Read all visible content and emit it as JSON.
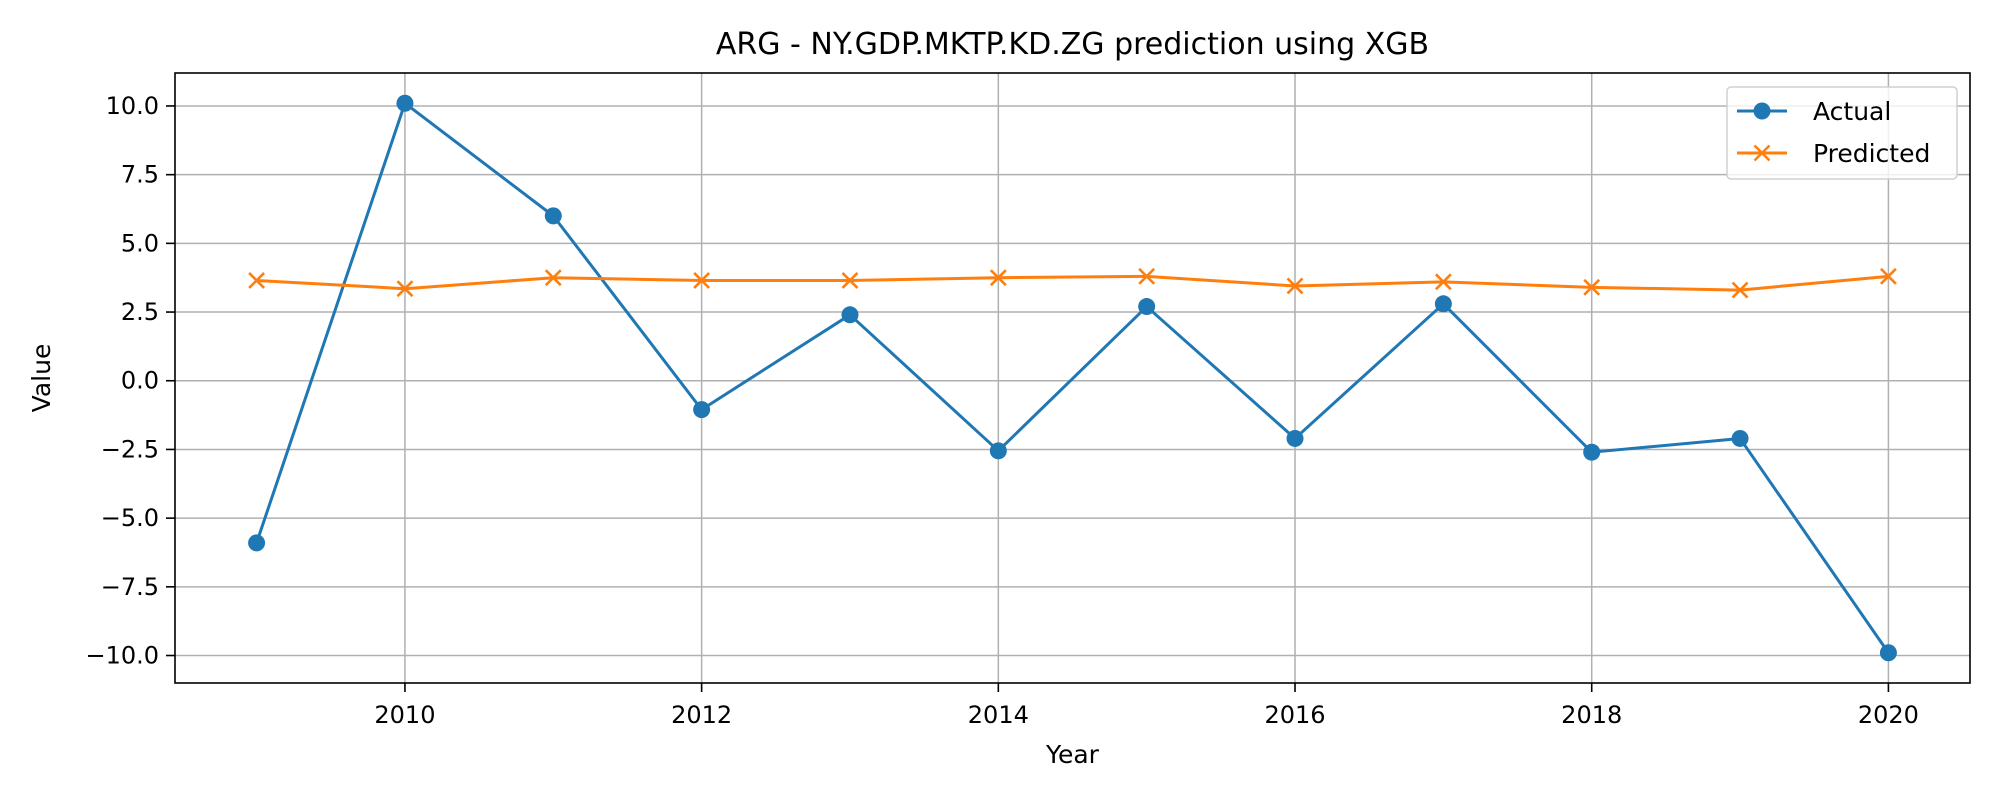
{
  "chart_data": {
    "type": "line",
    "title": "ARG - NY.GDP.MKTP.KD.ZG prediction using XGB",
    "xlabel": "Year",
    "ylabel": "Value",
    "x": [
      2009,
      2010,
      2011,
      2012,
      2013,
      2014,
      2015,
      2016,
      2017,
      2018,
      2019,
      2020
    ],
    "xlim": [
      2008.45,
      2020.55
    ],
    "ylim": [
      -11.0,
      11.2
    ],
    "xticks": [
      2010,
      2012,
      2014,
      2016,
      2018,
      2020
    ],
    "xtick_labels": [
      "2010",
      "2012",
      "2014",
      "2016",
      "2018",
      "2020"
    ],
    "yticks": [
      10.0,
      7.5,
      5.0,
      2.5,
      0.0,
      -2.5,
      -5.0,
      -7.5,
      -10.0
    ],
    "ytick_labels": [
      "10.0",
      "7.5",
      "5.0",
      "2.5",
      "0.0",
      "−2.5",
      "−5.0",
      "−7.5",
      "−10.0"
    ],
    "grid": true,
    "legend_position": "top-right",
    "series": [
      {
        "name": "Actual",
        "color": "#1f77b4",
        "marker": "circle",
        "values": [
          -5.9,
          10.1,
          6.0,
          -1.05,
          2.4,
          -2.55,
          2.7,
          -2.1,
          2.8,
          -2.6,
          -2.1,
          -9.9
        ]
      },
      {
        "name": "Predicted",
        "color": "#ff7f0e",
        "marker": "x",
        "values": [
          3.65,
          3.35,
          3.75,
          3.65,
          3.65,
          3.75,
          3.8,
          3.45,
          3.6,
          3.4,
          3.3,
          3.8
        ]
      }
    ]
  }
}
